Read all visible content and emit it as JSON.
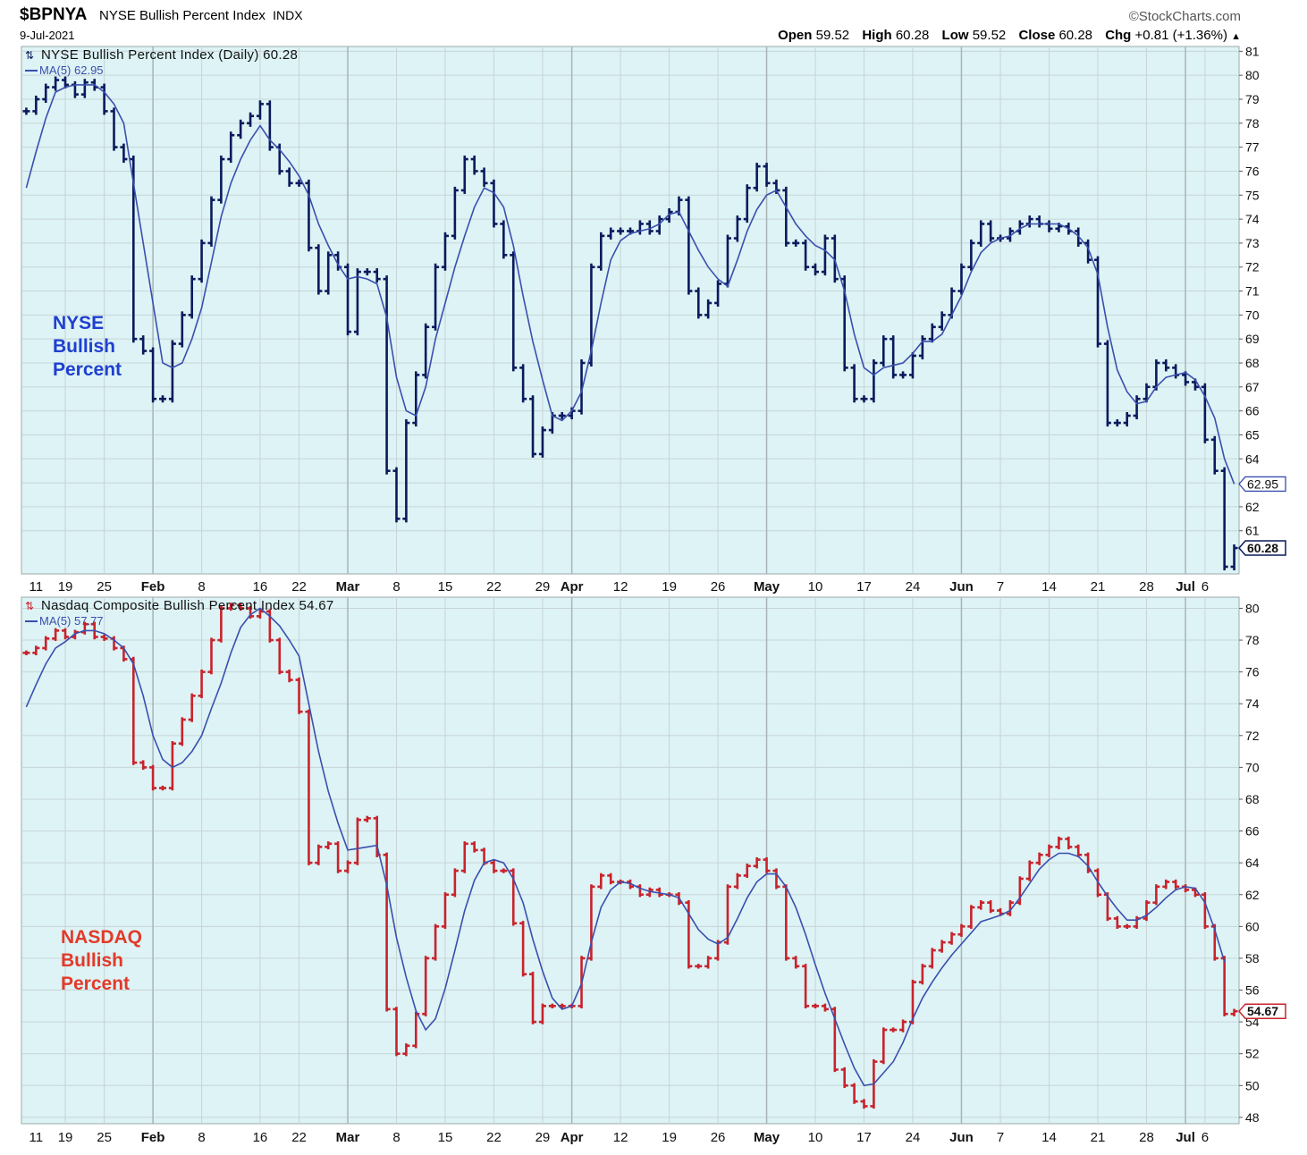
{
  "header": {
    "symbol": "$BPNYA",
    "name": "NYSE Bullish Percent Index",
    "exchange": "INDX",
    "date": "9-Jul-2021",
    "logo": "©StockCharts.com",
    "open_label": "Open",
    "open": "59.52",
    "high_label": "High",
    "high": "60.28",
    "low_label": "Low",
    "low": "59.52",
    "close_label": "Close",
    "close": "60.28",
    "chg_label": "Chg",
    "chg": "+0.81 (+1.36%)",
    "chg_arrow": "▲"
  },
  "colors": {
    "panel_bg": "#ddf3f5",
    "grid": "#c8d4d6",
    "nyse_bars": "#0a1a5c",
    "nasdaq_bars": "#c8232c",
    "ma_line": "#3a4fae",
    "nyse_note": "#1f3fd0",
    "nasdaq_note": "#e23a2a"
  },
  "x_axis": {
    "labels": [
      {
        "i": 1,
        "text": "11",
        "bold": false
      },
      {
        "i": 4,
        "text": "19",
        "bold": false
      },
      {
        "i": 8,
        "text": "25",
        "bold": false
      },
      {
        "i": 13,
        "text": "Feb",
        "bold": true
      },
      {
        "i": 18,
        "text": "8",
        "bold": false
      },
      {
        "i": 24,
        "text": "16",
        "bold": false
      },
      {
        "i": 28,
        "text": "22",
        "bold": false
      },
      {
        "i": 33,
        "text": "Mar",
        "bold": true
      },
      {
        "i": 38,
        "text": "8",
        "bold": false
      },
      {
        "i": 43,
        "text": "15",
        "bold": false
      },
      {
        "i": 48,
        "text": "22",
        "bold": false
      },
      {
        "i": 53,
        "text": "29",
        "bold": false
      },
      {
        "i": 56,
        "text": "Apr",
        "bold": true
      },
      {
        "i": 61,
        "text": "12",
        "bold": false
      },
      {
        "i": 66,
        "text": "19",
        "bold": false
      },
      {
        "i": 71,
        "text": "26",
        "bold": false
      },
      {
        "i": 76,
        "text": "May",
        "bold": true
      },
      {
        "i": 81,
        "text": "10",
        "bold": false
      },
      {
        "i": 86,
        "text": "17",
        "bold": false
      },
      {
        "i": 91,
        "text": "24",
        "bold": false
      },
      {
        "i": 96,
        "text": "Jun",
        "bold": true
      },
      {
        "i": 100,
        "text": "7",
        "bold": false
      },
      {
        "i": 105,
        "text": "14",
        "bold": false
      },
      {
        "i": 110,
        "text": "21",
        "bold": false
      },
      {
        "i": 115,
        "text": "28",
        "bold": false
      },
      {
        "i": 119,
        "text": "Jul",
        "bold": true
      },
      {
        "i": 121,
        "text": "6",
        "bold": false
      }
    ],
    "month_lines": [
      13,
      33,
      56,
      76,
      96,
      119
    ],
    "week_lines": [
      4,
      8,
      18,
      24,
      28,
      38,
      43,
      48,
      53,
      61,
      66,
      71,
      81,
      86,
      91,
      100,
      105,
      110,
      115,
      121
    ]
  },
  "chart_data": [
    {
      "type": "ohlc",
      "title": "NYSE Bullish Percent Index (Daily) 60.28",
      "ma_label": "MA(5) 62.95",
      "note": [
        "NYSE",
        "Bullish",
        "Percent"
      ],
      "ylim": [
        59.2,
        81.2
      ],
      "yticks": [
        61,
        62,
        63,
        64,
        65,
        66,
        67,
        68,
        69,
        70,
        71,
        72,
        73,
        74,
        75,
        76,
        77,
        78,
        79,
        80,
        81
      ],
      "last_close_label": "60.28",
      "ma_last_label": "62.95",
      "close": [
        78.5,
        79,
        79.5,
        79.8,
        79.6,
        79.2,
        79.7,
        79.5,
        78.5,
        77,
        76.5,
        69,
        68.5,
        66.5,
        66.5,
        68.8,
        70,
        71.5,
        73,
        74.8,
        76.5,
        77.5,
        78,
        78.3,
        78.8,
        77,
        76,
        75.5,
        75.5,
        72.8,
        71,
        72.5,
        72,
        69.3,
        71.8,
        71.8,
        71.5,
        63.5,
        61.5,
        65.5,
        67.5,
        69.5,
        72,
        73.3,
        75.2,
        76.5,
        76,
        75.5,
        73.8,
        72.5,
        67.8,
        66.5,
        64.2,
        65.2,
        65.8,
        65.8,
        66,
        68,
        72,
        73.3,
        73.5,
        73.5,
        73.5,
        73.8,
        73.5,
        74,
        74.3,
        74.8,
        71,
        70,
        70.5,
        71.3,
        73.2,
        74,
        75.3,
        76.2,
        75.5,
        75.2,
        73,
        73,
        72,
        71.8,
        73.2,
        71.5,
        67.8,
        66.5,
        66.5,
        68,
        69,
        67.5,
        67.5,
        68.3,
        69,
        69.5,
        70,
        71,
        72,
        73,
        73.8,
        73.2,
        73.2,
        73.5,
        73.8,
        74,
        73.8,
        73.6,
        73.7,
        73.5,
        73,
        72.3,
        68.8,
        65.5,
        65.5,
        65.8,
        66.5,
        67,
        68,
        67.8,
        67.5,
        67.2,
        67,
        64.8,
        63.5,
        59.5,
        60.28
      ],
      "ma": [
        75.3,
        76.8,
        78.2,
        79.3,
        79.5,
        79.6,
        79.6,
        79.6,
        79.3,
        78.8,
        78,
        75.5,
        73,
        70.5,
        68,
        67.8,
        68,
        69,
        70.3,
        72.2,
        74.1,
        75.5,
        76.5,
        77.3,
        77.9,
        77.3,
        76.9,
        76.4,
        75.8,
        75,
        73.8,
        72.9,
        72.1,
        71.5,
        71.6,
        71.5,
        71.3,
        69.9,
        67.4,
        66,
        65.8,
        67,
        69,
        70.5,
        72,
        73.3,
        74.5,
        75.3,
        75.1,
        74.5,
        72.9,
        70.8,
        68.9,
        67.3,
        65.8,
        65.6,
        66,
        66.8,
        68.5,
        70.5,
        72.3,
        73.1,
        73.4,
        73.5,
        73.6,
        73.8,
        74.2,
        74.3,
        73.5,
        72.7,
        72,
        71.5,
        71.2,
        72.3,
        73.5,
        74.4,
        75,
        75.2,
        74.5,
        73.8,
        73.3,
        72.9,
        72.7,
        72.3,
        71,
        69.2,
        67.8,
        67.5,
        67.8,
        67.9,
        68,
        68.4,
        68.9,
        68.9,
        69.2,
        70,
        70.8,
        71.8,
        72.6,
        73,
        73.2,
        73.3,
        73.6,
        73.8,
        73.8,
        73.8,
        73.8,
        73.6,
        73.3,
        72.8,
        71.7,
        69.5,
        67.7,
        66.8,
        66.3,
        66.4,
        67,
        67.4,
        67.5,
        67.6,
        67.3,
        66.6,
        65.7,
        64,
        62.95
      ]
    },
    {
      "type": "ohlc",
      "title": "Nasdaq Composite Bullish Percent Index 54.67",
      "ma_label": "MA(5) 57.77",
      "note": [
        "NASDAQ",
        "Bullish",
        "Percent"
      ],
      "ylim": [
        47.6,
        80.7
      ],
      "yticks": [
        48,
        50,
        52,
        54,
        56,
        58,
        60,
        62,
        64,
        66,
        68,
        70,
        72,
        74,
        76,
        78,
        80
      ],
      "last_close_label": "54.67",
      "ma_last_label": "57.77",
      "close": [
        77.2,
        77.5,
        78.1,
        78.6,
        78.2,
        78.5,
        79,
        78.2,
        78.1,
        77.5,
        76.8,
        70.3,
        70,
        68.7,
        68.7,
        71.5,
        73,
        74.5,
        76,
        78,
        80,
        80.2,
        80,
        79.5,
        79.8,
        78,
        76,
        75.5,
        73.5,
        64,
        65,
        65.2,
        63.5,
        64,
        66.7,
        66.8,
        64.5,
        54.8,
        52,
        52.5,
        54.5,
        58,
        60,
        62,
        63.5,
        65.2,
        64.8,
        64,
        63.5,
        63.5,
        60.2,
        57,
        54,
        55,
        55,
        55,
        55,
        58,
        62.5,
        63.2,
        62.8,
        62.8,
        62.5,
        62,
        62.3,
        62,
        62,
        61.5,
        57.5,
        57.5,
        58,
        59,
        62.5,
        63.2,
        63.8,
        64.2,
        63.5,
        62.5,
        58,
        57.5,
        55,
        55,
        54.8,
        51,
        50,
        49,
        48.7,
        51.5,
        53.5,
        53.5,
        54,
        56.5,
        57.5,
        58.5,
        59,
        59.5,
        60,
        61.2,
        61.5,
        61,
        60.8,
        61.5,
        63,
        64,
        64.5,
        65,
        65.5,
        65,
        64.5,
        63.5,
        62,
        60.5,
        60,
        60,
        60.5,
        61.5,
        62.5,
        62.8,
        62.5,
        62.3,
        62,
        60,
        58,
        54.5,
        54.67
      ],
      "ma": [
        73.8,
        75.2,
        76.5,
        77.5,
        77.9,
        78.4,
        78.6,
        78.6,
        78.4,
        78,
        77.5,
        76.5,
        74.5,
        72,
        70.5,
        70,
        70.3,
        71,
        72,
        73.7,
        75.3,
        77.2,
        78.8,
        79.6,
        80,
        79.5,
        78.9,
        78,
        77,
        74,
        71,
        68.5,
        66.5,
        64.8,
        64.9,
        65,
        65.1,
        62.6,
        59.3,
        56.8,
        54.7,
        53.5,
        54.2,
        56.1,
        58.5,
        61,
        62.9,
        64,
        64.2,
        64,
        63,
        61.5,
        59.2,
        57.2,
        55.5,
        54.8,
        55,
        56.4,
        59,
        61.2,
        62.3,
        62.8,
        62.7,
        62.4,
        62.2,
        62.1,
        62,
        61.8,
        60.8,
        59.8,
        59.2,
        58.9,
        59.3,
        60.5,
        61.8,
        62.8,
        63.3,
        63.3,
        62.5,
        61.2,
        59.5,
        57.6,
        55.8,
        54.2,
        52.6,
        51.1,
        50,
        50.1,
        50.8,
        51.5,
        52.7,
        54.2,
        55.5,
        56.5,
        57.4,
        58.2,
        58.9,
        59.6,
        60.3,
        60.5,
        60.7,
        61,
        61.8,
        62.7,
        63.6,
        64.2,
        64.6,
        64.6,
        64.4,
        63.8,
        62.8,
        61.9,
        61.1,
        60.4,
        60.4,
        60.7,
        61.2,
        61.8,
        62.3,
        62.5,
        62.4,
        61.5,
        59.8,
        57.77
      ]
    }
  ]
}
